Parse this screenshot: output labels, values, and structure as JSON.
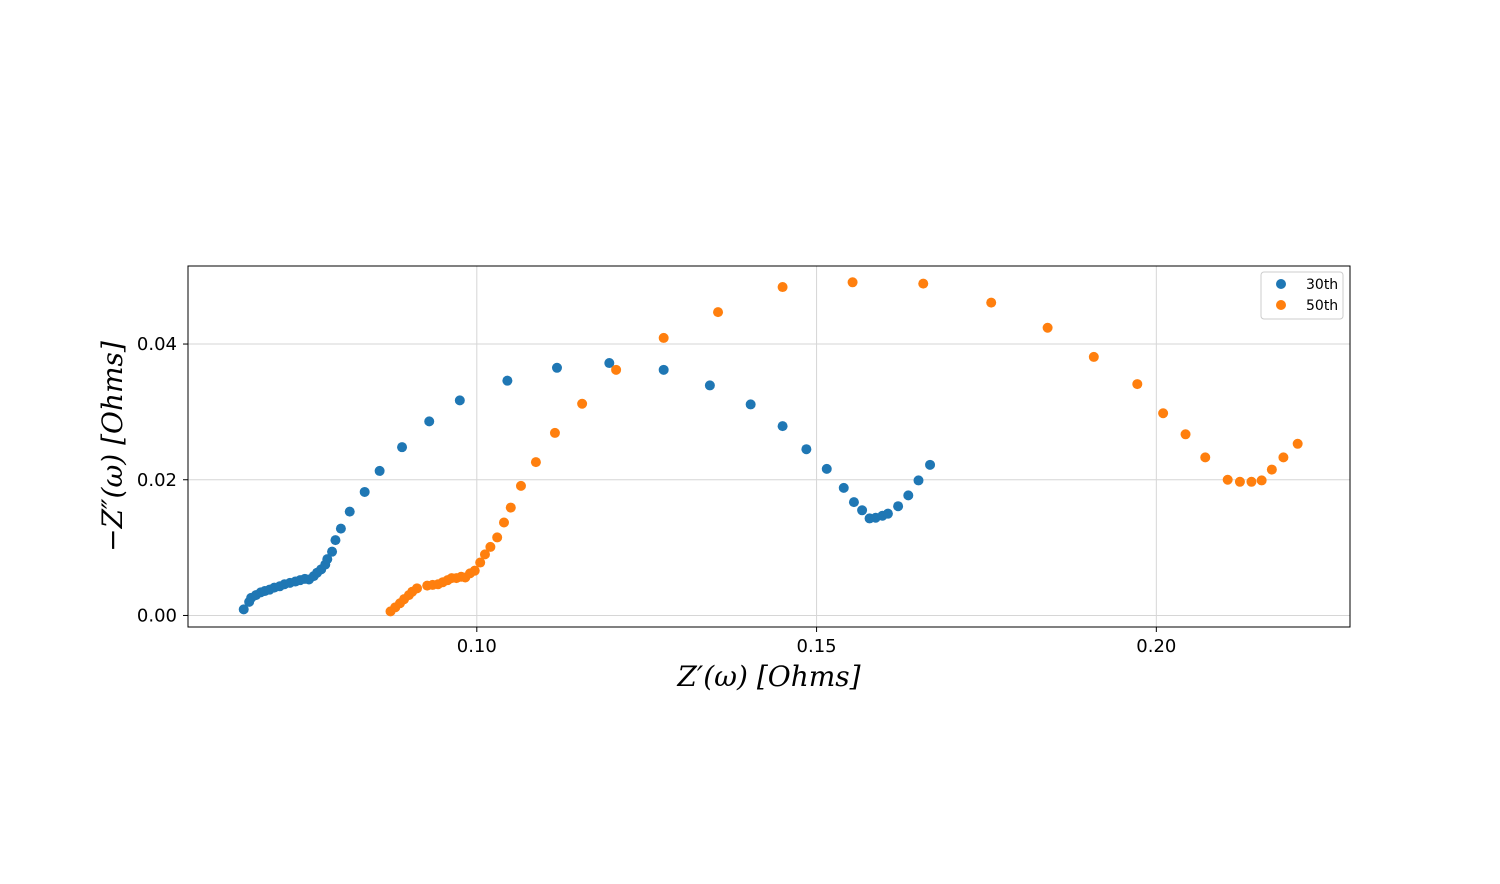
{
  "chart_data": {
    "type": "scatter",
    "title": "",
    "xlabel": "Z′(ω) [Ohms]",
    "ylabel": "−Z″(ω) [Ohms]",
    "xlim": [
      0.0575,
      0.2285
    ],
    "ylim": [
      -0.0017,
      0.0515
    ],
    "xticks": [
      0.1,
      0.15,
      0.2
    ],
    "xtick_labels": [
      "0.10",
      "0.15",
      "0.20"
    ],
    "yticks": [
      0.0,
      0.02,
      0.04
    ],
    "ytick_labels": [
      "0.00",
      "0.02",
      "0.04"
    ],
    "grid": true,
    "legend_position": "top-right",
    "series": [
      {
        "name": "30th",
        "color": "#1f77b4",
        "points": [
          [
            0.0657,
            0.0009
          ],
          [
            0.0665,
            0.002
          ],
          [
            0.0668,
            0.0026
          ],
          [
            0.0675,
            0.003
          ],
          [
            0.0682,
            0.0034
          ],
          [
            0.0688,
            0.0036
          ],
          [
            0.0695,
            0.0038
          ],
          [
            0.0702,
            0.0041
          ],
          [
            0.071,
            0.0043
          ],
          [
            0.0717,
            0.0046
          ],
          [
            0.0725,
            0.0048
          ],
          [
            0.0733,
            0.005
          ],
          [
            0.074,
            0.0052
          ],
          [
            0.0747,
            0.0054
          ],
          [
            0.0753,
            0.0053
          ],
          [
            0.076,
            0.0058
          ],
          [
            0.0765,
            0.0063
          ],
          [
            0.0771,
            0.0068
          ],
          [
            0.0777,
            0.0075
          ],
          [
            0.078,
            0.0083
          ],
          [
            0.0787,
            0.0094
          ],
          [
            0.0792,
            0.0111
          ],
          [
            0.08,
            0.0128
          ],
          [
            0.0813,
            0.0153
          ],
          [
            0.0835,
            0.0182
          ],
          [
            0.0857,
            0.0213
          ],
          [
            0.089,
            0.0248
          ],
          [
            0.093,
            0.0286
          ],
          [
            0.0975,
            0.0317
          ],
          [
            0.1045,
            0.0346
          ],
          [
            0.1118,
            0.0365
          ],
          [
            0.1195,
            0.0372
          ],
          [
            0.1275,
            0.0362
          ],
          [
            0.1343,
            0.0339
          ],
          [
            0.1403,
            0.0311
          ],
          [
            0.145,
            0.0279
          ],
          [
            0.1485,
            0.0245
          ],
          [
            0.1515,
            0.0216
          ],
          [
            0.154,
            0.0188
          ],
          [
            0.1555,
            0.0167
          ],
          [
            0.1567,
            0.0155
          ],
          [
            0.1578,
            0.0143
          ],
          [
            0.1587,
            0.0144
          ],
          [
            0.1597,
            0.0147
          ],
          [
            0.1605,
            0.015
          ],
          [
            0.162,
            0.0161
          ],
          [
            0.1635,
            0.0177
          ],
          [
            0.165,
            0.0199
          ],
          [
            0.1667,
            0.0222
          ]
        ]
      },
      {
        "name": "50th",
        "color": "#ff7f0e",
        "points": [
          [
            0.0873,
            0.0006
          ],
          [
            0.088,
            0.0012
          ],
          [
            0.0887,
            0.0018
          ],
          [
            0.0893,
            0.0024
          ],
          [
            0.09,
            0.003
          ],
          [
            0.0905,
            0.0035
          ],
          [
            0.0912,
            0.004
          ],
          [
            0.0927,
            0.0044
          ],
          [
            0.0935,
            0.0045
          ],
          [
            0.0943,
            0.0046
          ],
          [
            0.095,
            0.0049
          ],
          [
            0.0957,
            0.0052
          ],
          [
            0.0963,
            0.0055
          ],
          [
            0.097,
            0.0055
          ],
          [
            0.0977,
            0.0057
          ],
          [
            0.0983,
            0.0056
          ],
          [
            0.099,
            0.0062
          ],
          [
            0.0997,
            0.0066
          ],
          [
            0.1005,
            0.0078
          ],
          [
            0.1012,
            0.009
          ],
          [
            0.102,
            0.0101
          ],
          [
            0.103,
            0.0115
          ],
          [
            0.104,
            0.0137
          ],
          [
            0.105,
            0.0159
          ],
          [
            0.1065,
            0.0191
          ],
          [
            0.1087,
            0.0226
          ],
          [
            0.1115,
            0.0269
          ],
          [
            0.1155,
            0.0312
          ],
          [
            0.1205,
            0.0362
          ],
          [
            0.1275,
            0.0409
          ],
          [
            0.1355,
            0.0447
          ],
          [
            0.145,
            0.0484
          ],
          [
            0.1553,
            0.0491
          ],
          [
            0.1657,
            0.0489
          ],
          [
            0.1757,
            0.0461
          ],
          [
            0.184,
            0.0424
          ],
          [
            0.1908,
            0.0381
          ],
          [
            0.1972,
            0.0341
          ],
          [
            0.201,
            0.0298
          ],
          [
            0.2043,
            0.0267
          ],
          [
            0.2072,
            0.0233
          ],
          [
            0.2105,
            0.02
          ],
          [
            0.2123,
            0.0197
          ],
          [
            0.214,
            0.0197
          ],
          [
            0.2155,
            0.0199
          ],
          [
            0.217,
            0.0215
          ],
          [
            0.2187,
            0.0233
          ],
          [
            0.2208,
            0.0253
          ]
        ]
      }
    ]
  }
}
